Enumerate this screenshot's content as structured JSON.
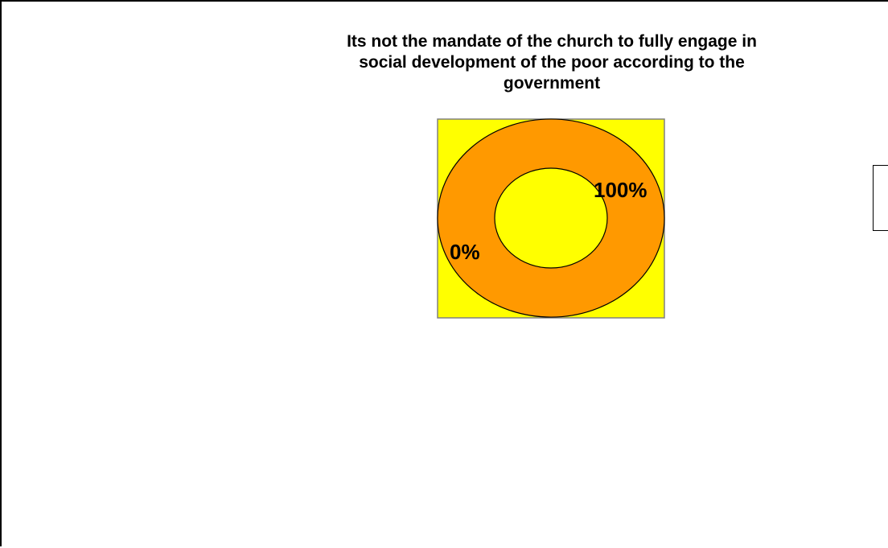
{
  "chart_data": {
    "type": "pie",
    "variant": "doughnut",
    "title_lines": [
      "Its not the mandate of the church to fully engage in",
      "social development of the poor according to the",
      "government"
    ],
    "categories": [
      "",
      ""
    ],
    "values": [
      100,
      0
    ],
    "data_labels": [
      "100%",
      "0%"
    ],
    "colors": [
      "#ff9900",
      "#ff9900"
    ],
    "plot_area_color": "#ffff00",
    "hole_color": "#ffff00",
    "legend_position": "right"
  }
}
